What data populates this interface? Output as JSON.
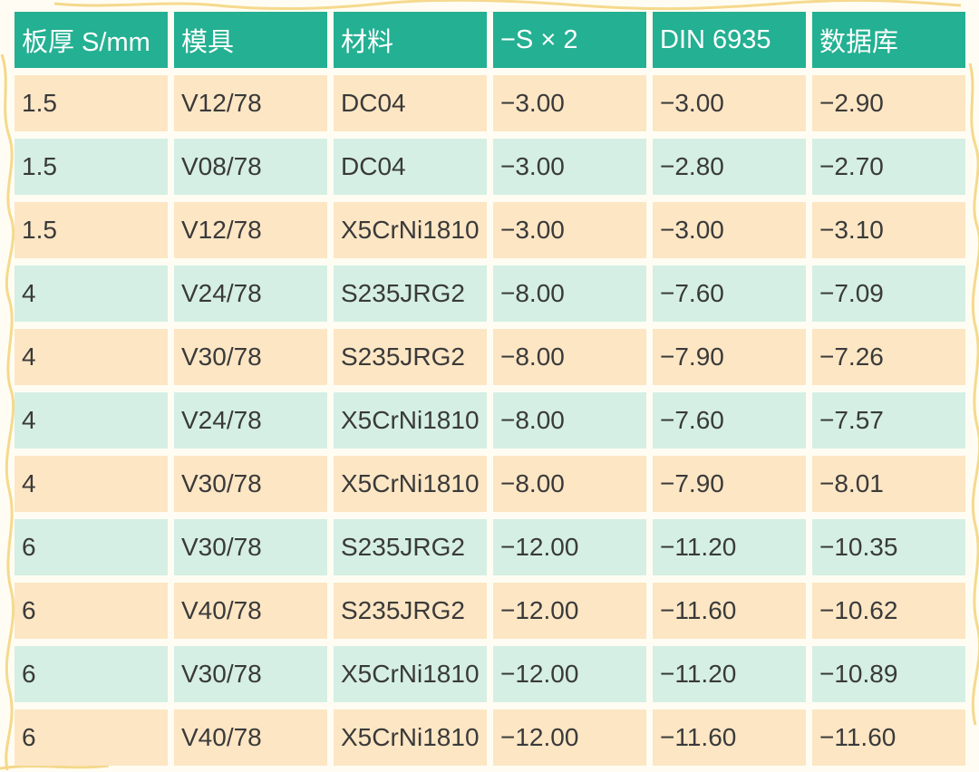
{
  "colors": {
    "header_bg": "#24b092",
    "row_peach": "#fde6c4",
    "row_mint": "#d5efe4",
    "header_text": "#ffffff",
    "cell_text": "#3a3a3a",
    "decoration": "#f3d27a"
  },
  "table": {
    "headers": [
      "板厚 S/mm",
      "模具",
      "材料",
      "−S × 2",
      "DIN 6935",
      "数据库"
    ],
    "rows": [
      [
        "1.5",
        "V12/78",
        "DC04",
        "−3.00",
        "−3.00",
        "−2.90"
      ],
      [
        "1.5",
        "V08/78",
        "DC04",
        "−3.00",
        "−2.80",
        "−2.70"
      ],
      [
        "1.5",
        "V12/78",
        "X5CrNi1810",
        "−3.00",
        "−3.00",
        "−3.10"
      ],
      [
        "4",
        "V24/78",
        "S235JRG2",
        "−8.00",
        "−7.60",
        "−7.09"
      ],
      [
        "4",
        "V30/78",
        "S235JRG2",
        "−8.00",
        "−7.90",
        "−7.26"
      ],
      [
        "4",
        "V24/78",
        "X5CrNi1810",
        "−8.00",
        "−7.60",
        "−7.57"
      ],
      [
        "4",
        "V30/78",
        "X5CrNi1810",
        "−8.00",
        "−7.90",
        "−8.01"
      ],
      [
        "6",
        "V30/78",
        "S235JRG2",
        "−12.00",
        "−11.20",
        "−10.35"
      ],
      [
        "6",
        "V40/78",
        "S235JRG2",
        "−12.00",
        "−11.60",
        "−10.62"
      ],
      [
        "6",
        "V30/78",
        "X5CrNi1810",
        "−12.00",
        "−11.20",
        "−10.89"
      ],
      [
        "6",
        "V40/78",
        "X5CrNi1810",
        "−12.00",
        "−11.60",
        "−11.60"
      ]
    ]
  }
}
